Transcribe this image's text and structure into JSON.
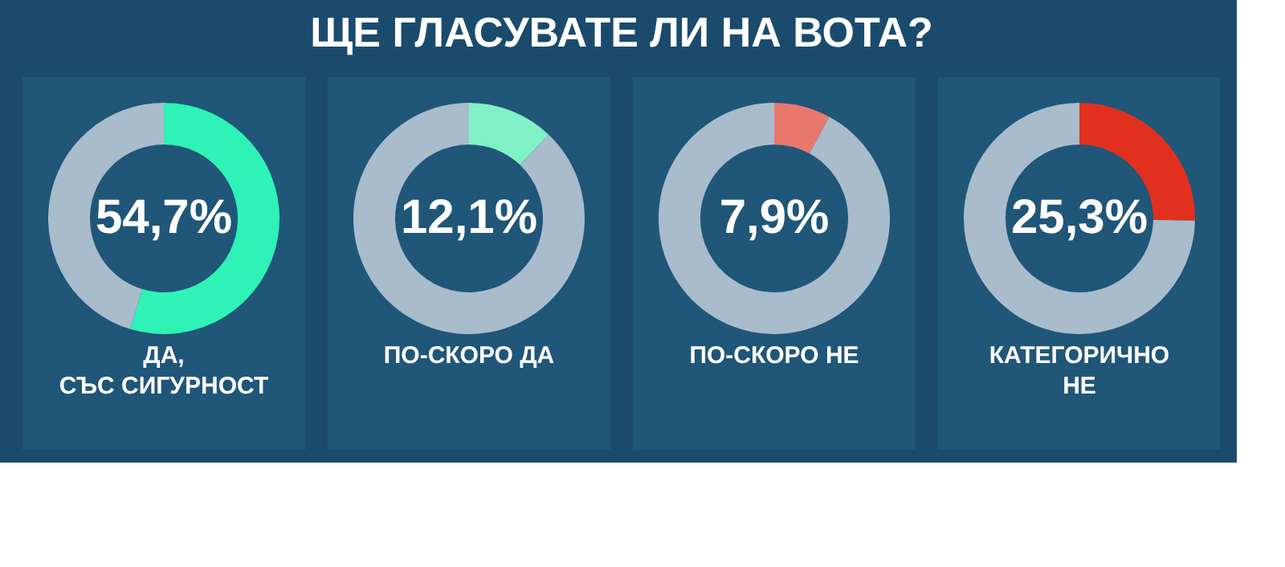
{
  "chart_data": [
    {
      "type": "donut",
      "title": "ЩЕ ГЛАСУВАТЕ ЛИ НА ВОТА?",
      "xlabel": "ДА,\nСЪС СИГУРНОСТ",
      "categories": [
        null,
        null
      ],
      "values": [
        54.7,
        45.3
      ],
      "colors": [
        "#2ef2b6",
        "#a8bccb"
      ],
      "value_labels": [
        "54,7%",
        null
      ]
    },
    {
      "type": "donut",
      "xlabel": "ПО-СКОРО ДА",
      "categories": [
        null,
        null
      ],
      "values": [
        12.1,
        87.9
      ],
      "colors": [
        "#80f0c6",
        "#a8bccb"
      ],
      "value_labels": [
        "12,1%",
        null
      ]
    },
    {
      "type": "donut",
      "xlabel": "ПО-СКОРО НЕ",
      "categories": [
        null,
        null
      ],
      "values": [
        7.9,
        92.1
      ],
      "colors": [
        "#e8786c",
        "#a8bccb"
      ],
      "value_labels": [
        "7,9%",
        null
      ]
    },
    {
      "type": "donut",
      "xlabel": "КАТЕГОРИЧНО\nНЕ",
      "categories": [
        null,
        null
      ],
      "values": [
        25.3,
        74.7
      ],
      "colors": [
        "#e2301f",
        "#a8bccb"
      ],
      "value_labels": [
        "25,3%",
        null
      ]
    }
  ]
}
